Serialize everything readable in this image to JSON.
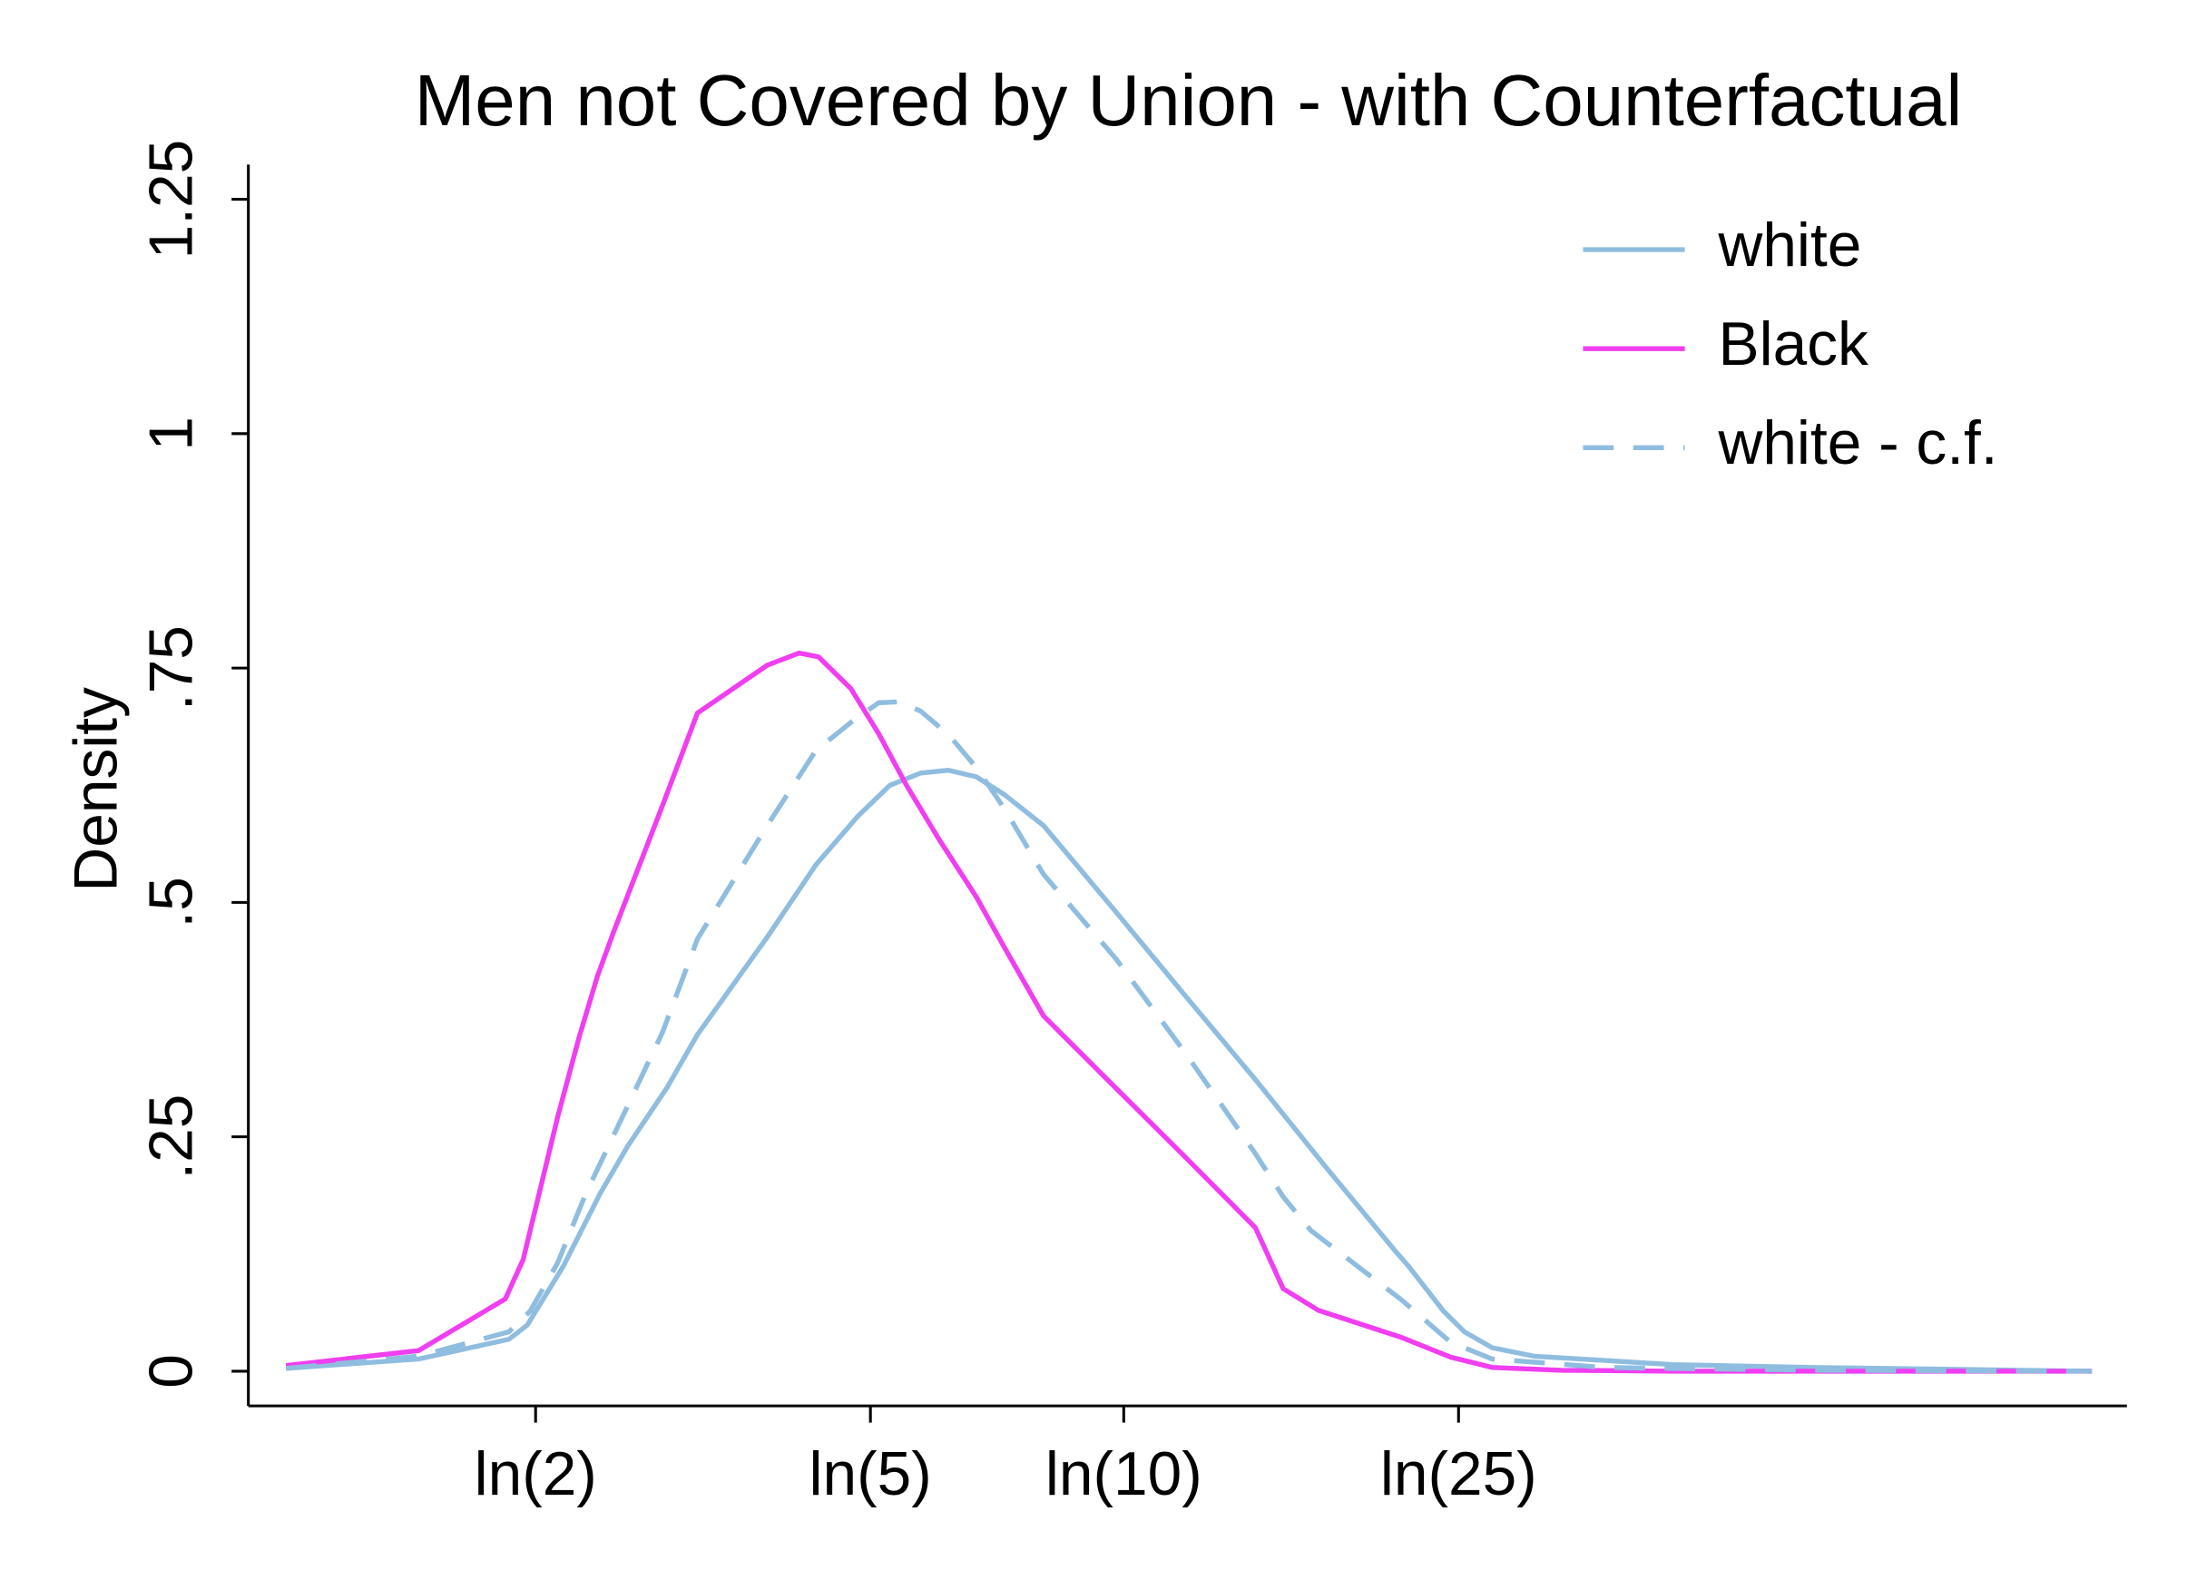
{
  "chart_data": {
    "type": "line",
    "title": "Men not Covered by Union - with Counterfactual",
    "y_label": "Density",
    "xlim": [
      -0.093,
      5.048
    ],
    "ylim": [
      -0.037,
      1.287
    ],
    "xticks": [
      {
        "value": 0.6931,
        "label": "ln(2)"
      },
      {
        "value": 1.6094,
        "label": "ln(5)"
      },
      {
        "value": 2.3026,
        "label": "ln(10)"
      },
      {
        "value": 3.2189,
        "label": "ln(25)"
      }
    ],
    "yticks": [
      0,
      {
        "value": 0.25,
        "label": ".25"
      },
      {
        "value": 0.5,
        "label": ".5"
      },
      {
        "value": 0.75,
        "label": ".75"
      },
      1,
      {
        "value": 1.25,
        "label": "1.25"
      }
    ],
    "legend_position": "top-right",
    "series": [
      {
        "name": "white",
        "color": "#8fbde0",
        "dash": "solid",
        "x": [
          0.01,
          0.373,
          0.62,
          0.67,
          0.769,
          0.869,
          0.945,
          1.052,
          1.136,
          1.327,
          1.46,
          1.575,
          1.663,
          1.747,
          1.823,
          1.899,
          1.976,
          2.083,
          2.281,
          2.472,
          2.663,
          2.853,
          3.044,
          3.082,
          3.178,
          3.235,
          3.311,
          3.426,
          3.807,
          4.189,
          4.952
        ],
        "values": [
          0.003,
          0.013,
          0.034,
          0.049,
          0.112,
          0.189,
          0.24,
          0.302,
          0.359,
          0.463,
          0.54,
          0.592,
          0.625,
          0.638,
          0.641,
          0.634,
          0.615,
          0.582,
          0.49,
          0.4,
          0.311,
          0.219,
          0.129,
          0.112,
          0.064,
          0.042,
          0.025,
          0.016,
          0.007,
          0.004,
          0
        ]
      },
      {
        "name": "Black",
        "color": "#f03ef0",
        "dash": "solid",
        "x": [
          0.01,
          0.373,
          0.61,
          0.659,
          0.754,
          0.812,
          0.862,
          0.907,
          1.041,
          1.136,
          1.327,
          1.414,
          1.467,
          1.556,
          1.632,
          1.708,
          1.796,
          1.899,
          1.976,
          2.083,
          2.281,
          2.472,
          2.663,
          2.739,
          2.835,
          3.063,
          3.197,
          3.311,
          3.502,
          3.807,
          4.952
        ],
        "values": [
          0.006,
          0.022,
          0.077,
          0.119,
          0.272,
          0.356,
          0.421,
          0.469,
          0.604,
          0.702,
          0.753,
          0.766,
          0.762,
          0.728,
          0.68,
          0.625,
          0.568,
          0.506,
          0.452,
          0.379,
          0.302,
          0.228,
          0.153,
          0.088,
          0.065,
          0.036,
          0.015,
          0.004,
          0.001,
          0,
          0
        ]
      },
      {
        "name": "white - c.f.",
        "color": "#8fbde0",
        "dash": "dashed",
        "x": [
          0.01,
          0.373,
          0.62,
          0.678,
          0.754,
          0.83,
          0.945,
          1.041,
          1.136,
          1.327,
          1.46,
          1.556,
          1.632,
          1.689,
          1.747,
          1.823,
          1.899,
          1.976,
          2.083,
          2.281,
          2.472,
          2.663,
          2.739,
          2.815,
          3.063,
          3.197,
          3.311,
          3.617,
          4.189,
          4.952
        ],
        "values": [
          0.003,
          0.016,
          0.042,
          0.064,
          0.116,
          0.189,
          0.283,
          0.362,
          0.461,
          0.582,
          0.662,
          0.692,
          0.713,
          0.714,
          0.704,
          0.679,
          0.644,
          0.6,
          0.53,
          0.44,
          0.339,
          0.232,
          0.186,
          0.15,
          0.076,
          0.031,
          0.013,
          0.004,
          0.001,
          0
        ]
      }
    ]
  }
}
